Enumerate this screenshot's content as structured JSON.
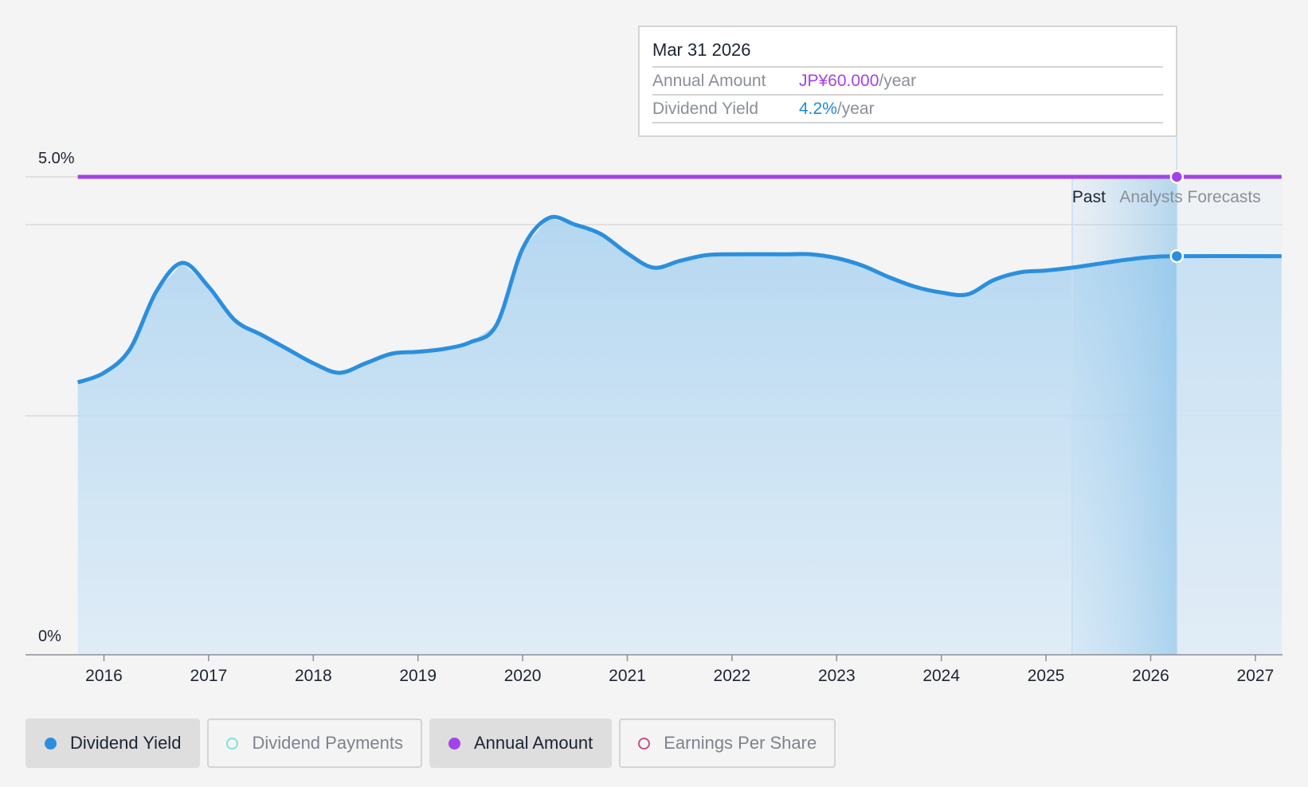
{
  "chart_data": {
    "type": "area",
    "y_tick_labels": [
      "5.0%",
      "0%"
    ],
    "ylim": [
      0,
      5.0
    ],
    "x_tick_labels": [
      "2016",
      "2017",
      "2018",
      "2019",
      "2020",
      "2021",
      "2022",
      "2023",
      "2024",
      "2025",
      "2026",
      "2027"
    ],
    "xlim": [
      2015.5,
      2027.25
    ],
    "grid": true,
    "past_label": "Past",
    "forecast_label": "Analysts Forecasts",
    "series": [
      {
        "name": "Dividend Yield",
        "color": "#2b8fde",
        "points": [
          [
            2015.75,
            2.85
          ],
          [
            2016.0,
            2.95
          ],
          [
            2016.25,
            3.2
          ],
          [
            2016.5,
            3.8
          ],
          [
            2016.75,
            4.1
          ],
          [
            2017.0,
            3.85
          ],
          [
            2017.25,
            3.5
          ],
          [
            2017.5,
            3.35
          ],
          [
            2017.75,
            3.2
          ],
          [
            2018.0,
            3.05
          ],
          [
            2018.25,
            2.95
          ],
          [
            2018.5,
            3.05
          ],
          [
            2018.75,
            3.15
          ],
          [
            2019.0,
            3.17
          ],
          [
            2019.25,
            3.2
          ],
          [
            2019.5,
            3.27
          ],
          [
            2019.75,
            3.45
          ],
          [
            2020.0,
            4.25
          ],
          [
            2020.25,
            4.57
          ],
          [
            2020.5,
            4.5
          ],
          [
            2020.75,
            4.4
          ],
          [
            2021.0,
            4.2
          ],
          [
            2021.25,
            4.05
          ],
          [
            2021.5,
            4.12
          ],
          [
            2021.75,
            4.18
          ],
          [
            2022.0,
            4.19
          ],
          [
            2022.5,
            4.19
          ],
          [
            2022.75,
            4.19
          ],
          [
            2023.0,
            4.15
          ],
          [
            2023.25,
            4.07
          ],
          [
            2023.5,
            3.95
          ],
          [
            2023.75,
            3.85
          ],
          [
            2024.0,
            3.79
          ],
          [
            2024.25,
            3.77
          ],
          [
            2024.5,
            3.92
          ],
          [
            2024.75,
            4.0
          ],
          [
            2025.0,
            4.02
          ],
          [
            2025.25,
            4.05
          ],
          [
            2025.5,
            4.09
          ],
          [
            2025.75,
            4.13
          ],
          [
            2026.0,
            4.16
          ],
          [
            2026.25,
            4.17
          ],
          [
            2027.25,
            4.17
          ]
        ]
      },
      {
        "name": "Annual Amount",
        "color": "#a442e8",
        "points": [
          [
            2015.75,
            5.0
          ],
          [
            2027.25,
            5.0
          ]
        ]
      }
    ],
    "highlight_x": 2026.25,
    "past_end_x": 2025.25
  },
  "tooltip": {
    "date": "Mar 31 2026",
    "annual_amount_label": "Annual Amount",
    "annual_amount_value": "JP¥60.000",
    "annual_amount_unit": "/year",
    "dividend_yield_label": "Dividend Yield",
    "dividend_yield_value": "4.2%",
    "dividend_yield_unit": "/year"
  },
  "legend": [
    {
      "label": "Dividend Yield",
      "color": "#2b8fde",
      "active": true,
      "filled": true
    },
    {
      "label": "Dividend Payments",
      "color": "#7fe3d8",
      "active": false,
      "filled": false
    },
    {
      "label": "Annual Amount",
      "color": "#a442e8",
      "active": true,
      "filled": true
    },
    {
      "label": "Earnings Per Share",
      "color": "#c5508a",
      "active": false,
      "filled": false
    }
  ]
}
